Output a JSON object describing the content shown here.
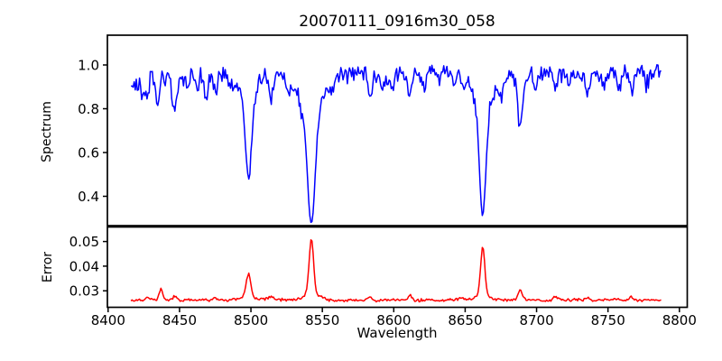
{
  "title": "20070111_0916m30_058",
  "chart_data": {
    "type": "line",
    "title": "20070111_0916m30_058",
    "xlabel": "Wavelength",
    "x_start": 8416,
    "x_end": 8787,
    "x_step": 0.75,
    "xlim": [
      8399.5,
      8805.5
    ],
    "xticks": [
      8400,
      8450,
      8500,
      8550,
      8600,
      8650,
      8700,
      8750,
      8800
    ],
    "seed": 13,
    "panels": [
      {
        "name": "spectrum",
        "ylabel": "Spectrum",
        "color": "#0000ff",
        "ylim": [
          0.266,
          1.136
        ],
        "yticks": [
          0.4,
          0.6,
          0.8,
          1.0
        ],
        "ytick_decimals": 1,
        "continuum": 0.96,
        "noise_fast": 0.05,
        "noise_slow": 0.018,
        "clamp": [
          0.272,
          1.09
        ],
        "absorption_lines": [
          [
            8419.5,
            0.06,
            2.5
          ],
          [
            8424.0,
            0.07,
            1.2
          ],
          [
            8427.5,
            0.09,
            1.2
          ],
          [
            8434.5,
            0.15,
            1.5
          ],
          [
            8446.5,
            0.19,
            1.7
          ],
          [
            8455.0,
            0.06,
            1.2
          ],
          [
            8462.0,
            0.09,
            1.2
          ],
          [
            8468.5,
            0.1,
            1.3
          ],
          [
            8475.5,
            0.09,
            1.3
          ],
          [
            8488.0,
            0.06,
            1.2
          ],
          [
            8498.3,
            0.36,
            2.1
          ],
          [
            8498.3,
            0.12,
            5.5
          ],
          [
            8514.2,
            0.12,
            1.4
          ],
          [
            8526.0,
            0.08,
            1.3
          ],
          [
            8536.0,
            0.06,
            1.5
          ],
          [
            8542.3,
            0.5,
            2.5
          ],
          [
            8542.3,
            0.19,
            7.5
          ],
          [
            8556.0,
            0.05,
            1.2
          ],
          [
            8583.5,
            0.11,
            1.5
          ],
          [
            8592.0,
            0.06,
            1.2
          ],
          [
            8598.5,
            0.08,
            1.3
          ],
          [
            8611.5,
            0.1,
            1.5
          ],
          [
            8621.5,
            0.08,
            1.3
          ],
          [
            8632.0,
            0.06,
            1.2
          ],
          [
            8642.0,
            0.06,
            1.2
          ],
          [
            8648.5,
            0.08,
            1.3
          ],
          [
            8662.3,
            0.47,
            2.2
          ],
          [
            8662.3,
            0.17,
            6.5
          ],
          [
            8675.0,
            0.08,
            1.2
          ],
          [
            8688.6,
            0.25,
            1.9
          ],
          [
            8699.0,
            0.05,
            1.2
          ],
          [
            8713.0,
            0.07,
            1.4
          ],
          [
            8722.5,
            0.07,
            1.3
          ],
          [
            8736.0,
            0.07,
            1.3
          ],
          [
            8747.0,
            0.06,
            1.2
          ],
          [
            8757.5,
            0.06,
            1.2
          ],
          [
            8766.5,
            0.07,
            1.3
          ],
          [
            8777.0,
            0.05,
            1.2
          ]
        ]
      },
      {
        "name": "error",
        "ylabel": "Error",
        "color": "#ff0000",
        "ylim": [
          0.0233,
          0.0559
        ],
        "yticks": [
          0.03,
          0.04,
          0.05
        ],
        "ytick_decimals": 2,
        "baseline": 0.0263,
        "noise_fast": 0.0007,
        "noise_slow": 0.0004,
        "clamp": [
          0.0245,
          0.055
        ],
        "peaks": [
          [
            8427.5,
            0.0012,
            1.2
          ],
          [
            8437.0,
            0.0042,
            1.2
          ],
          [
            8446.5,
            0.0015,
            1.3
          ],
          [
            8475.0,
            0.001,
            1.2
          ],
          [
            8498.3,
            0.0105,
            1.7
          ],
          [
            8514.0,
            0.0012,
            1.2
          ],
          [
            8542.3,
            0.022,
            1.5
          ],
          [
            8542.3,
            0.003,
            5.0
          ],
          [
            8583.0,
            0.0014,
            1.2
          ],
          [
            8611.5,
            0.002,
            1.3
          ],
          [
            8648.0,
            0.001,
            1.2
          ],
          [
            8662.3,
            0.019,
            1.4
          ],
          [
            8662.3,
            0.0026,
            4.5
          ],
          [
            8688.6,
            0.0038,
            1.5
          ],
          [
            8713.0,
            0.0012,
            1.2
          ],
          [
            8736.0,
            0.0012,
            1.2
          ],
          [
            8766.0,
            0.0016,
            1.2
          ]
        ]
      }
    ]
  }
}
